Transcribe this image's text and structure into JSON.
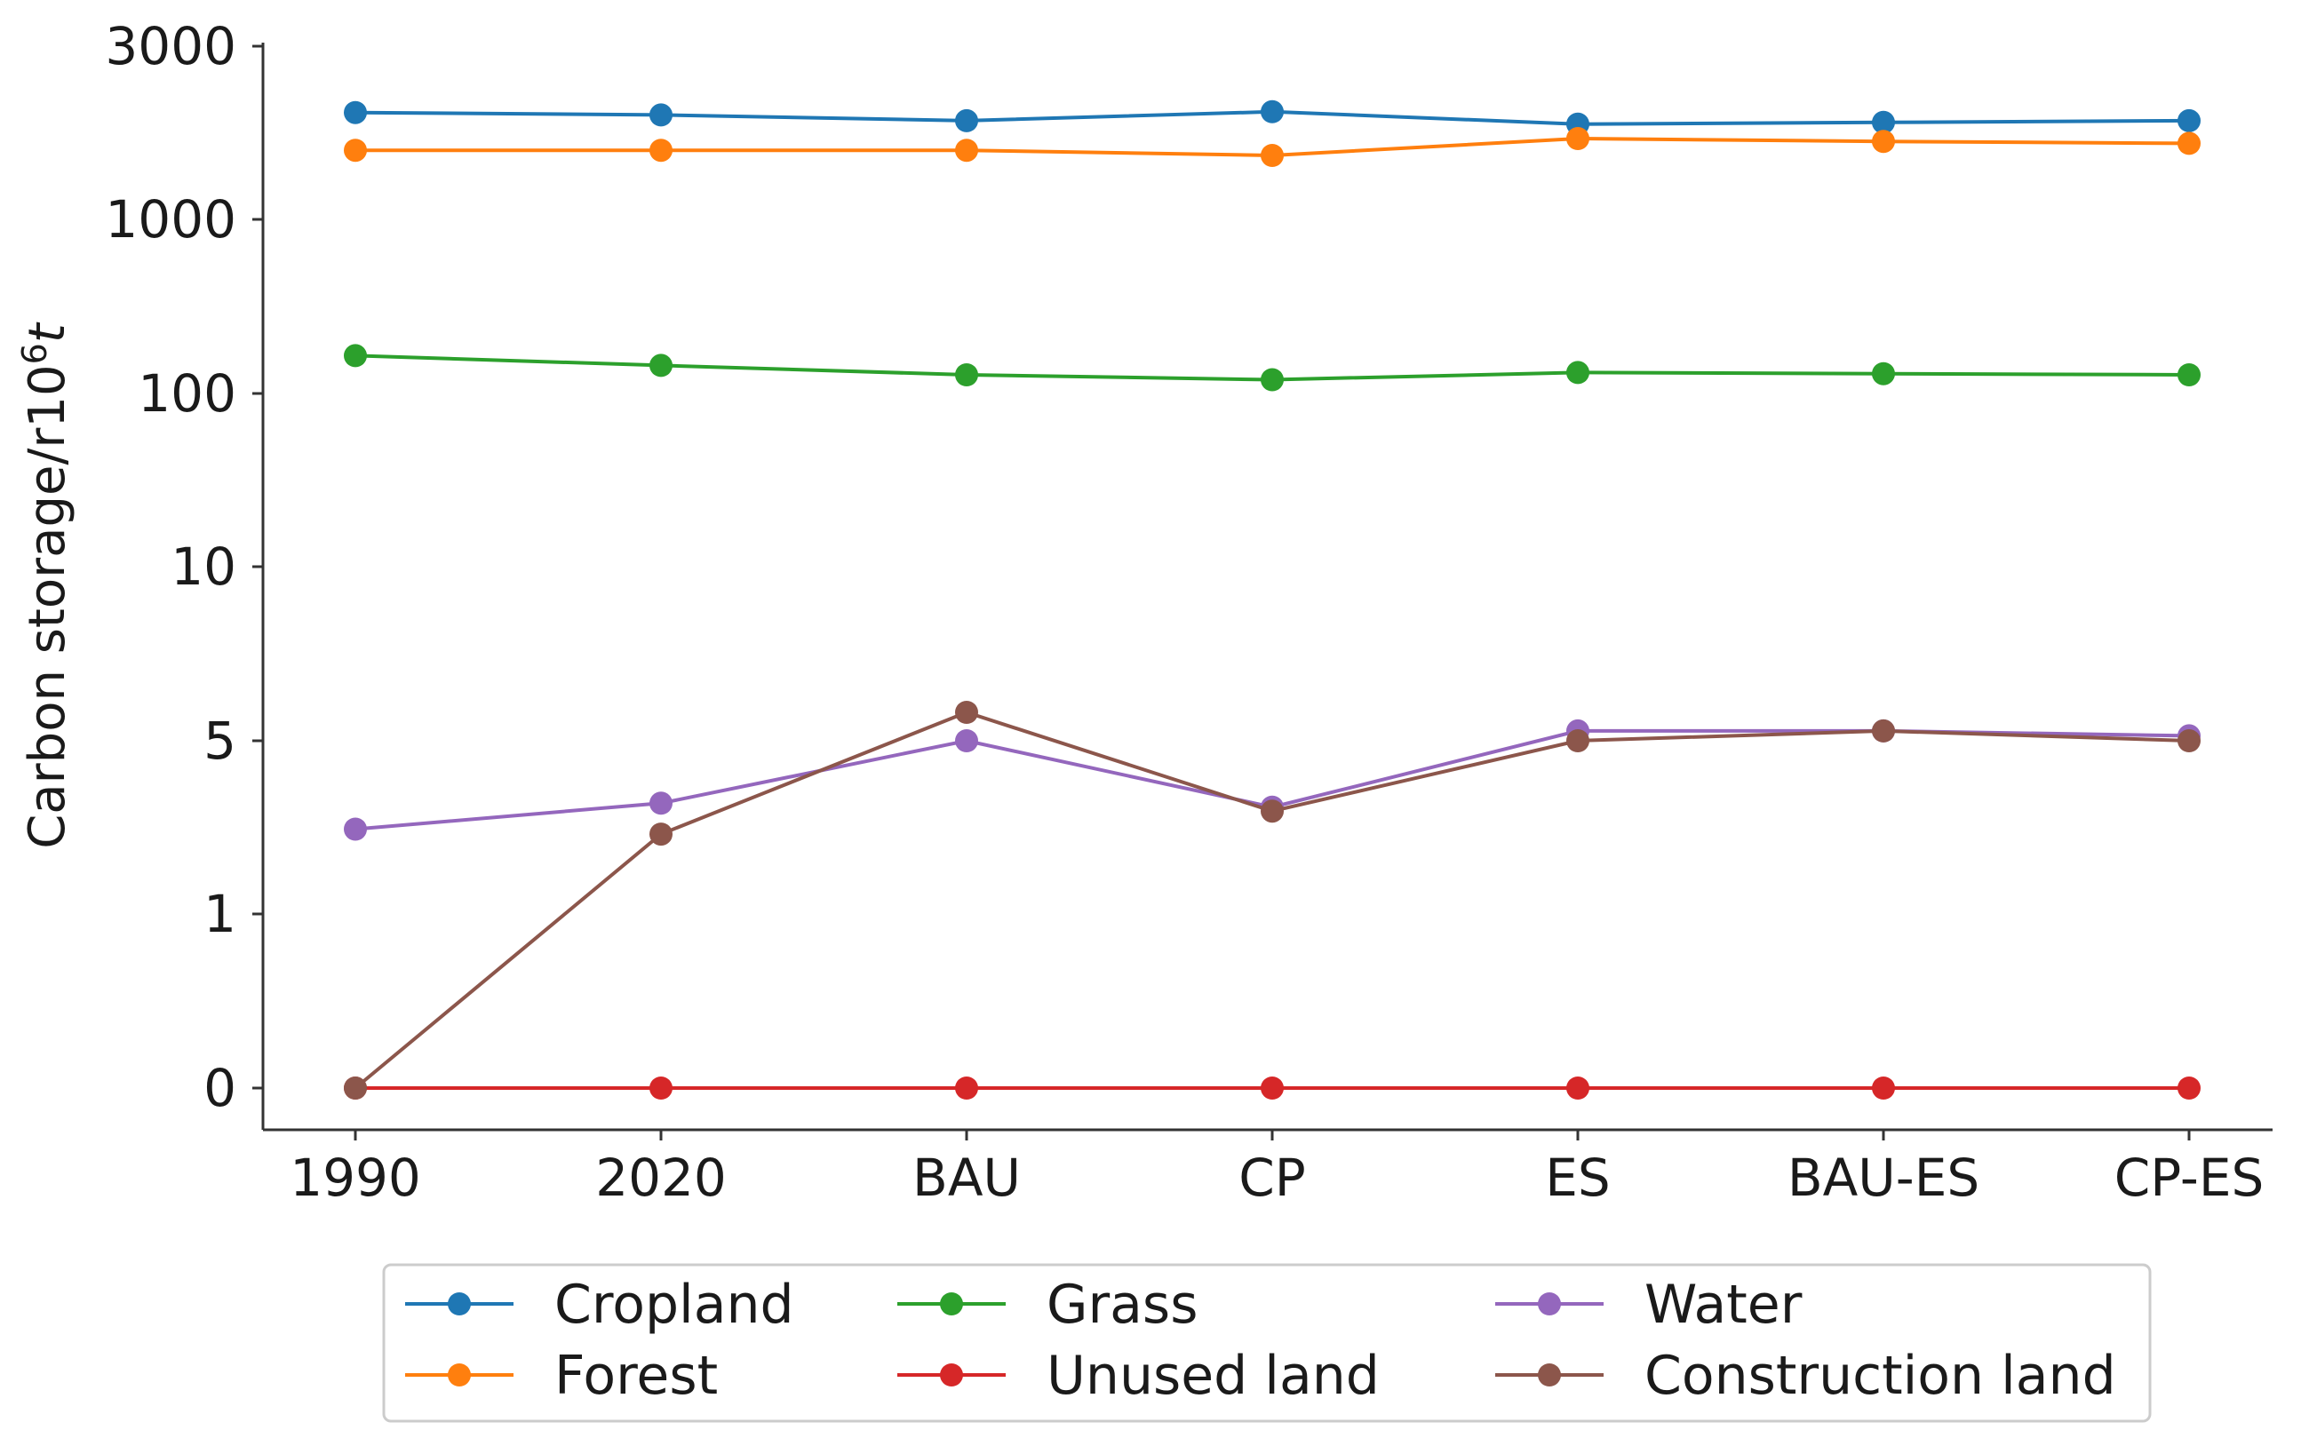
{
  "chart_data": {
    "type": "line",
    "title": "",
    "xlabel": "",
    "ylabel": "Carbon storage/r10",
    "ylabel_superscript": "6",
    "ylabel_unit": "t",
    "yscale": "categorical-log",
    "y_ticks": [
      "3000",
      "1000",
      "100",
      "10",
      "5",
      "1",
      "0"
    ],
    "categories": [
      "1990",
      "2020",
      "BAU",
      "CP",
      "ES",
      "BAU-ES",
      "CP-ES"
    ],
    "legend_position": "bottom",
    "series": [
      {
        "name": "Cropland",
        "color": "#1f77b4",
        "values": [
          1970,
          1940,
          1870,
          1980,
          1830,
          1850,
          1870
        ]
      },
      {
        "name": "Forest",
        "color": "#ff7f0e",
        "values": [
          1550,
          1550,
          1550,
          1500,
          1670,
          1640,
          1620
        ]
      },
      {
        "name": "Grass",
        "color": "#2ca02c",
        "values": [
          165,
          145,
          128,
          120,
          132,
          130,
          128
        ]
      },
      {
        "name": "Unused land",
        "color": "#d62728",
        "values": [
          0,
          0,
          0,
          0,
          0,
          0,
          0
        ]
      },
      {
        "name": "Water",
        "color": "#9467bd",
        "values": [
          2.2,
          2.8,
          5.0,
          2.7,
          5.2,
          5.2,
          5.1
        ]
      },
      {
        "name": "Construction land",
        "color": "#8c564b",
        "values": [
          0,
          2.1,
          5.6,
          2.6,
          5.0,
          5.2,
          5.0
        ]
      }
    ],
    "legend_order": [
      "Cropland",
      "Grass",
      "Water",
      "Forest",
      "Unused land",
      "Construction land"
    ]
  }
}
